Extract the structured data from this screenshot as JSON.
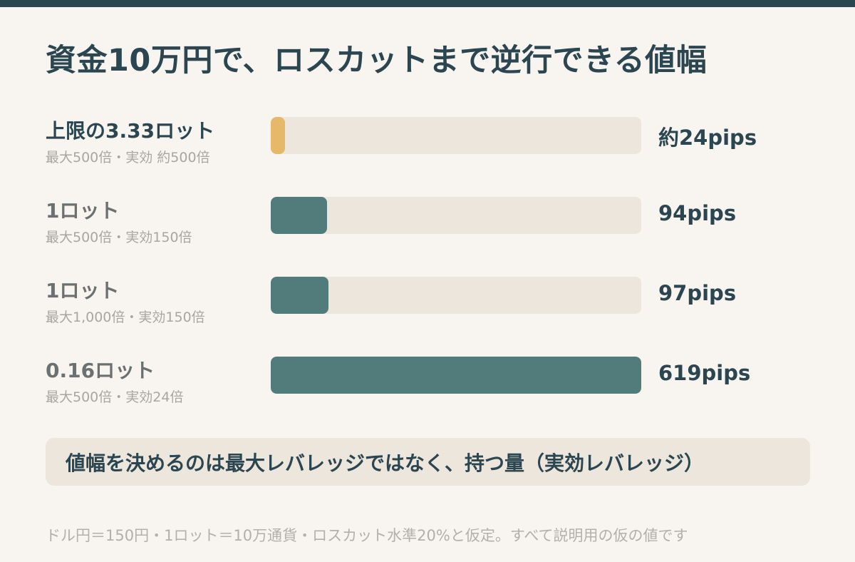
{
  "title": "資金10万円で、ロスカットまで逆行できる値幅",
  "colors": {
    "background": "#f8f4ef",
    "dark": "#2b4650",
    "teal": "#517c7b",
    "gold": "#e6b86a",
    "track": "#ede6dd"
  },
  "chart_data": {
    "type": "bar",
    "orientation": "horizontal",
    "title": "資金10万円で、ロスカットまで逆行できる値幅",
    "unit": "pips",
    "xlim": [
      0,
      619
    ],
    "categories": [
      "上限の3.33ロット",
      "1ロット",
      "1ロット",
      "0.16ロット"
    ],
    "subtitles": [
      "最大500倍・実効 約500倍",
      "最大500倍・実効150倍",
      "最大1,000倍・実効150倍",
      "最大500倍・実効24倍"
    ],
    "values": [
      24,
      94,
      97,
      619
    ],
    "value_labels": [
      "約24pips",
      "94pips",
      "97pips",
      "619pips"
    ],
    "bar_colors": [
      "#e6b86a",
      "#517c7b",
      "#517c7b",
      "#517c7b"
    ],
    "highlight": [
      true,
      false,
      false,
      false
    ]
  },
  "callout": "値幅を決めるのは最大レバレッジではなく、持つ量（実効レバレッジ）",
  "footnote": "ドル円＝150円・1ロット＝10万通貨・ロスカット水準20%と仮定。すべて説明用の仮の値です"
}
